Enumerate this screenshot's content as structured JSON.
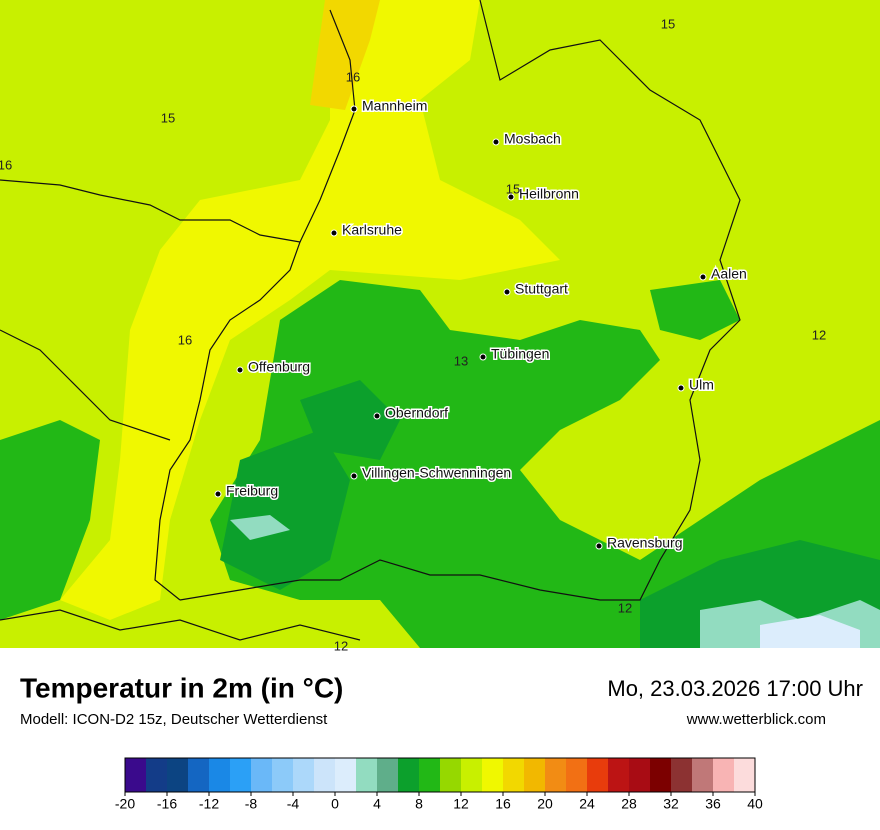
{
  "map": {
    "cities": [
      "Mannheim",
      "Mosbach",
      "Heilbronn",
      "Karlsruhe",
      "Aalen",
      "Stuttgart",
      "Tübingen",
      "Offenburg",
      "Ulm",
      "Oberndorf",
      "Villingen-Schwenningen",
      "Freiburg",
      "Ravensburg"
    ],
    "contour_labels": [
      15,
      16,
      15,
      16,
      15,
      16,
      13,
      12,
      12,
      12
    ]
  },
  "header": {
    "title": "Temperatur in 2m (in °C)",
    "subtitle": "Modell: ICON-D2 15z, Deutscher Wetterdienst",
    "datetime": "Mo, 23.03.2026 17:00 Uhr",
    "website": "www.wetterblick.com"
  },
  "colorbar": {
    "ticks": [
      -20,
      -16,
      -12,
      -8,
      -4,
      0,
      4,
      8,
      12,
      16,
      20,
      24,
      28,
      32,
      36,
      40
    ],
    "colors": [
      "#3a0a8c",
      "#133c88",
      "#0c4482",
      "#1466c2",
      "#1a88e6",
      "#2ba0f6",
      "#6ab8f8",
      "#8ccaf9",
      "#acd8fa",
      "#cce4fa",
      "#dcedfc",
      "#92dcc0",
      "#5fae8a",
      "#0ca02c",
      "#22b816",
      "#96d800",
      "#c8f000",
      "#f0f800",
      "#f2d800",
      "#f2b800",
      "#f28c14",
      "#f27014",
      "#e83c0c",
      "#bc1414",
      "#a80c14",
      "#7c0000",
      "#8c3232",
      "#c07878",
      "#f8b4b4",
      "#fcdcdc"
    ]
  }
}
